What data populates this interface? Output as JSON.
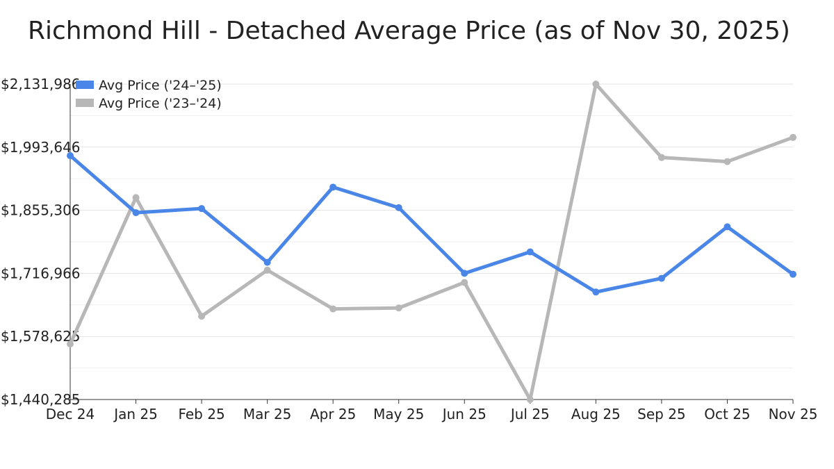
{
  "chart_data": {
    "type": "line",
    "title": "Richmond Hill - Detached Average Price (as of Nov 30, 2025)",
    "xlabel": "",
    "ylabel": "",
    "categories": [
      "Dec 24",
      "Jan 25",
      "Feb 25",
      "Mar 25",
      "Apr 25",
      "May 25",
      "Jun 25",
      "Jul 25",
      "Aug 25",
      "Sep 25",
      "Oct 25",
      "Nov 25"
    ],
    "ylim": [
      1440285,
      2131986
    ],
    "y_ticks": [
      1440285,
      1578625,
      1716966,
      1855306,
      1993646,
      2131986
    ],
    "y_tick_labels": [
      "$1,440,285",
      "$1,578,625",
      "$1,716,966",
      "$1,855,306",
      "$1,993,646",
      "$2,131,986"
    ],
    "grid": true,
    "legend_position": "top-left",
    "series": [
      {
        "name": "Avg Price ('24–'25)",
        "color": "#4a86e8",
        "values": [
          1975000,
          1850000,
          1859000,
          1741000,
          1906000,
          1861000,
          1717000,
          1764000,
          1676000,
          1706000,
          1819000,
          1715000
        ]
      },
      {
        "name": "Avg Price ('23–'24)",
        "color": "#b7b7b7",
        "values": [
          1562000,
          1883000,
          1623000,
          1724000,
          1639000,
          1641000,
          1697000,
          1440285,
          2131986,
          1971000,
          1962000,
          2015000
        ]
      }
    ]
  }
}
